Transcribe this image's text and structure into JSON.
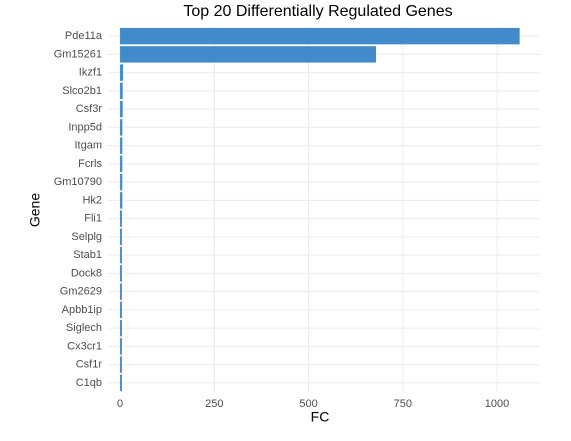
{
  "chart_data": {
    "type": "hbar",
    "title": "Top 20 Differentially Regulated Genes",
    "x_label": "FC",
    "y_label": "Gene",
    "categories": [
      "Pde11a",
      "Gm15261",
      "Ikzf1",
      "Slco2b1",
      "Csf3r",
      "Inpp5d",
      "Itgam",
      "Fcrls",
      "Gm10790",
      "Hk2",
      "Fli1",
      "Selplg",
      "Stab1",
      "Dock8",
      "Gm2629",
      "Apbb1ip",
      "Siglech",
      "Cx3cr1",
      "Csf1r",
      "C1qb"
    ],
    "values": [
      1060,
      679,
      8,
      7,
      7,
      6,
      6,
      6,
      6,
      6,
      5,
      5,
      5,
      5,
      5,
      5,
      5,
      5,
      5,
      5
    ],
    "color": "#428bca",
    "xlim": [
      -32,
      1114
    ],
    "xticks": [
      0,
      250,
      500,
      750,
      1000
    ],
    "grid": true
  }
}
